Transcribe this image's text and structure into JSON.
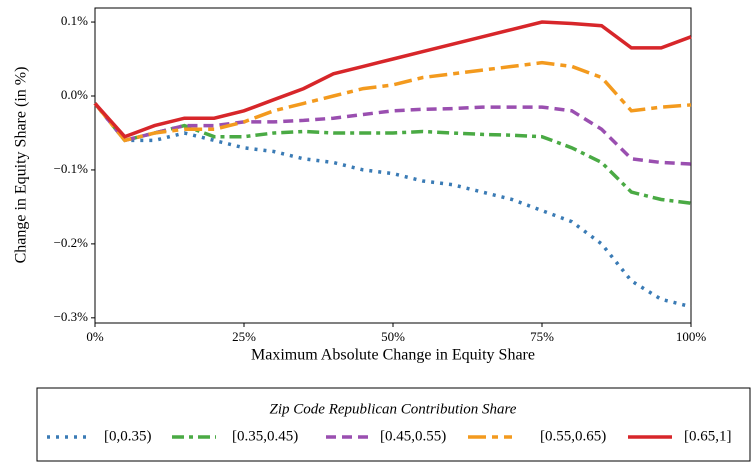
{
  "chart_data": {
    "type": "line",
    "x_label": "Maximum Absolute Change in Equity Share",
    "y_label": "Change in Equity Share (in %)",
    "legend_title": "Zip Code Republican Contribution Share",
    "legend_position": "bottom",
    "x": [
      0,
      5,
      10,
      15,
      20,
      25,
      30,
      35,
      40,
      45,
      50,
      55,
      60,
      65,
      70,
      75,
      80,
      85,
      90,
      95,
      100
    ],
    "xlim": [
      0,
      100
    ],
    "xticks": [
      {
        "value": 0,
        "label": "0%"
      },
      {
        "value": 25,
        "label": "25%"
      },
      {
        "value": 50,
        "label": "50%"
      },
      {
        "value": 75,
        "label": "75%"
      },
      {
        "value": 100,
        "label": "100%"
      }
    ],
    "ylim": [
      -0.307,
      0.119
    ],
    "yticks": [
      {
        "value": -0.3,
        "label": "−0.3%"
      },
      {
        "value": -0.2,
        "label": "−0.2%"
      },
      {
        "value": -0.1,
        "label": "−0.1%"
      },
      {
        "value": 0,
        "label": "0.0%"
      },
      {
        "value": 0.1,
        "label": "0.1%"
      }
    ],
    "series": [
      {
        "name": "[0,0.35)",
        "color": "#3a7bb5",
        "dash": "dotted",
        "values": [
          -0.01,
          -0.06,
          -0.06,
          -0.05,
          -0.06,
          -0.07,
          -0.075,
          -0.085,
          -0.09,
          -0.1,
          -0.105,
          -0.115,
          -0.12,
          -0.13,
          -0.14,
          -0.155,
          -0.17,
          -0.2,
          -0.25,
          -0.275,
          -0.285
        ]
      },
      {
        "name": "[0.35,0.45)",
        "color": "#4aaa44",
        "dash": "dashdot",
        "values": [
          -0.01,
          -0.06,
          -0.05,
          -0.04,
          -0.055,
          -0.055,
          -0.05,
          -0.048,
          -0.05,
          -0.05,
          -0.05,
          -0.048,
          -0.05,
          -0.052,
          -0.053,
          -0.055,
          -0.07,
          -0.09,
          -0.13,
          -0.14,
          -0.145
        ]
      },
      {
        "name": "[0.45,0.55)",
        "color": "#9a4fb0",
        "dash": "dashed",
        "values": [
          -0.01,
          -0.06,
          -0.05,
          -0.04,
          -0.04,
          -0.035,
          -0.035,
          -0.033,
          -0.03,
          -0.025,
          -0.02,
          -0.018,
          -0.017,
          -0.015,
          -0.015,
          -0.015,
          -0.02,
          -0.045,
          -0.085,
          -0.09,
          -0.092
        ]
      },
      {
        "name": "[0.55,0.65)",
        "color": "#f39a1e",
        "dash": "longshort",
        "values": [
          -0.01,
          -0.06,
          -0.05,
          -0.045,
          -0.045,
          -0.035,
          -0.02,
          -0.01,
          0,
          0.01,
          0.015,
          0.025,
          0.03,
          0.035,
          0.04,
          0.045,
          0.04,
          0.025,
          -0.02,
          -0.015,
          -0.012
        ]
      },
      {
        "name": "[0.65,1]",
        "color": "#d7262a",
        "dash": "solid",
        "values": [
          -0.01,
          -0.055,
          -0.04,
          -0.03,
          -0.03,
          -0.02,
          -0.005,
          0.01,
          0.03,
          0.04,
          0.05,
          0.06,
          0.07,
          0.08,
          0.09,
          0.1,
          0.098,
          0.095,
          0.065,
          0.065,
          0.08
        ]
      }
    ]
  }
}
